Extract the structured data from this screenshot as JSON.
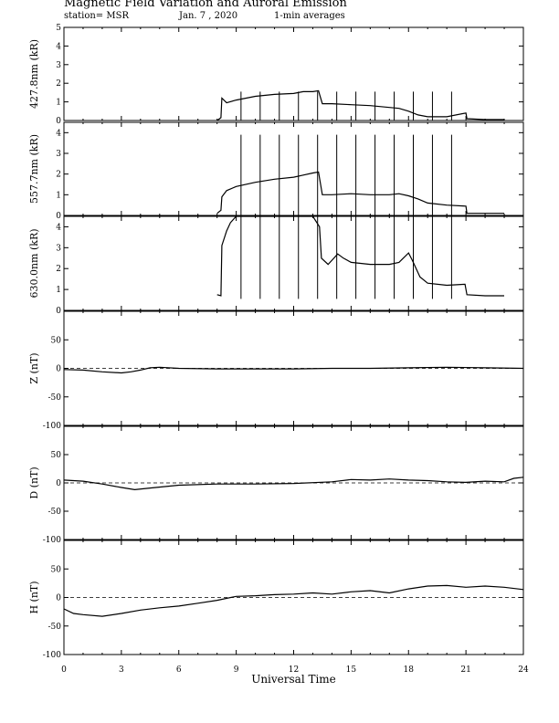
{
  "header": {
    "title": "Magnetic Field Variation and Auroral Emission",
    "station": "station= MSR",
    "date": "Jan. 7 , 2020",
    "averaging": "1-min averages"
  },
  "chart_data": [
    {
      "type": "line",
      "ylabel": "427.8nm (kR)",
      "ylim": [
        0,
        5
      ],
      "yticks": [
        "0",
        "1",
        "2",
        "3",
        "4",
        "5"
      ],
      "spike_top": 1.55,
      "spike_bottom": 0.0,
      "x": [
        8.0,
        8.2,
        8.25,
        8.5,
        9,
        10,
        11,
        12,
        12.5,
        13,
        13.3,
        13.5,
        14,
        15,
        16,
        17,
        17.5,
        18,
        18.5,
        19,
        20,
        21,
        21.05,
        22,
        23
      ],
      "values": [
        0.0,
        0.15,
        1.2,
        0.95,
        1.1,
        1.3,
        1.4,
        1.45,
        1.55,
        1.55,
        1.6,
        0.9,
        0.9,
        0.85,
        0.8,
        0.7,
        0.65,
        0.5,
        0.3,
        0.2,
        0.2,
        0.4,
        0.1,
        0.05,
        0.05
      ]
    },
    {
      "type": "line",
      "ylabel": "557.7nm (kR)",
      "ylim": [
        0,
        4.5
      ],
      "yticks": [
        "0",
        "1",
        "2",
        "3",
        "4"
      ],
      "spike_top": 3.9,
      "spike_bottom": 0.0,
      "x": [
        8.0,
        8.2,
        8.25,
        8.5,
        9,
        10,
        11,
        12,
        12.5,
        13,
        13.3,
        13.5,
        14,
        15,
        16,
        17,
        17.5,
        18,
        18.5,
        19,
        20,
        21,
        21.05,
        22,
        23
      ],
      "values": [
        0.1,
        0.25,
        0.9,
        1.2,
        1.4,
        1.6,
        1.75,
        1.85,
        1.95,
        2.05,
        2.1,
        1.0,
        1.0,
        1.05,
        1.0,
        1.0,
        1.05,
        0.95,
        0.8,
        0.6,
        0.5,
        0.45,
        0.1,
        0.1,
        0.1
      ]
    },
    {
      "type": "line",
      "ylabel": "630.0nm (kR)",
      "ylim": [
        0,
        4.5
      ],
      "yticks": [
        "0",
        "1",
        "2",
        "3",
        "4"
      ],
      "spike_top": 4.5,
      "spike_bottom": 0.55,
      "x": [
        8.0,
        8.2,
        8.25,
        8.5,
        8.7,
        9.0,
        9.1,
        10,
        11,
        12,
        13,
        13.35,
        13.45,
        13.8,
        14,
        14.3,
        14.6,
        15,
        16,
        17,
        17.5,
        18,
        18.2,
        18.6,
        19,
        20,
        20.95,
        21.05,
        22,
        23
      ],
      "values": [
        0.75,
        0.7,
        3.1,
        3.8,
        4.2,
        4.5,
        4.5,
        4.5,
        4.5,
        4.5,
        4.5,
        4.0,
        2.5,
        2.2,
        2.4,
        2.7,
        2.5,
        2.3,
        2.2,
        2.2,
        2.3,
        2.75,
        2.4,
        1.6,
        1.3,
        1.2,
        1.25,
        0.75,
        0.7,
        0.7
      ]
    },
    {
      "type": "line",
      "ylabel": "Z (nT)",
      "ylim": [
        -100,
        100
      ],
      "yticks": [
        "50",
        "0",
        "-50",
        "-100"
      ],
      "x": [
        0,
        1,
        2,
        3,
        3.5,
        4,
        4.5,
        5,
        6,
        8,
        10,
        12,
        14,
        16,
        18,
        20,
        22,
        24
      ],
      "values": [
        -2,
        -3,
        -6,
        -8,
        -6,
        -3,
        1,
        2,
        0,
        -1,
        -1,
        -1,
        0,
        0,
        1,
        2,
        1,
        0
      ]
    },
    {
      "type": "line",
      "ylabel": "D (nT)",
      "ylim": [
        -100,
        100
      ],
      "yticks": [
        "50",
        "0",
        "-50",
        "-100"
      ],
      "x": [
        0,
        1,
        2,
        3,
        3.7,
        4.5,
        6,
        8,
        10,
        12,
        14,
        15,
        16,
        17,
        18,
        19,
        20,
        21,
        22,
        23,
        23.5,
        24
      ],
      "values": [
        5,
        3,
        -2,
        -8,
        -12,
        -9,
        -4,
        -2,
        -2,
        -1,
        2,
        6,
        5,
        7,
        5,
        4,
        2,
        1,
        3,
        2,
        8,
        10
      ]
    },
    {
      "type": "line",
      "ylabel": "H (nT)",
      "ylim": [
        -100,
        100
      ],
      "yticks": [
        "50",
        "0",
        "-50",
        "-100"
      ],
      "x": [
        0,
        0.5,
        1,
        2,
        3,
        4,
        5,
        6,
        7,
        8,
        9,
        10,
        11,
        12,
        13,
        14,
        15,
        16,
        17,
        18,
        19,
        20,
        21,
        22,
        23,
        24
      ],
      "values": [
        -20,
        -28,
        -30,
        -33,
        -28,
        -22,
        -18,
        -15,
        -10,
        -5,
        2,
        3,
        5,
        6,
        8,
        6,
        10,
        12,
        8,
        15,
        20,
        21,
        18,
        20,
        18,
        14
      ]
    }
  ],
  "xaxis": {
    "label": "Universal Time",
    "ticks": [
      "0",
      "3",
      "6",
      "9",
      "12",
      "15",
      "18",
      "21",
      "24"
    ],
    "xlim": [
      0,
      24
    ]
  }
}
